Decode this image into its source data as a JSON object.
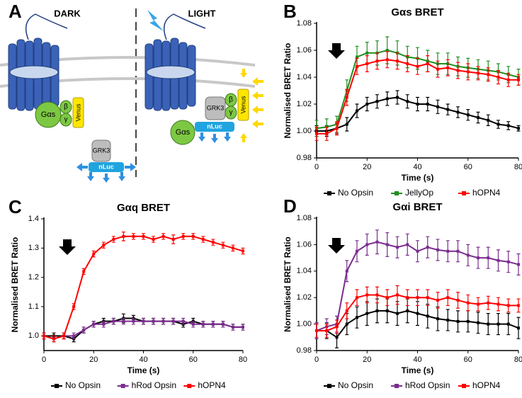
{
  "diagram": {
    "label": "A",
    "left_title": "DARK",
    "right_title": "LIGHT",
    "dark": {
      "g_alpha": "Gαs",
      "beta": "β",
      "gamma": "γ",
      "venus": "Venus",
      "grk": "GRK3",
      "nluc": "nLuc"
    },
    "light": {
      "g_alpha": "Gαs",
      "beta": "β",
      "gamma": "γ",
      "venus": "Venus",
      "grk": "GRK3",
      "nluc": "nLuc"
    }
  },
  "chart_data": [
    {
      "type": "line",
      "panel_label": "B",
      "title": "Gαs BRET",
      "x_label": "Time (s)",
      "y_label": "Normalised BRET Ratio",
      "x": [
        0,
        4,
        8,
        12,
        16,
        20,
        24,
        28,
        32,
        36,
        40,
        44,
        48,
        52,
        56,
        60,
        64,
        68,
        72,
        76,
        80
      ],
      "xlim": [
        0,
        80
      ],
      "xticks": [
        0,
        20,
        40,
        60,
        80
      ],
      "ylim": [
        0.98,
        1.08
      ],
      "yticks": [
        0.98,
        {
          "value": 1,
          "label": "1.00"
        },
        1.02,
        1.04,
        1.06,
        1.08
      ],
      "series": [
        {
          "name": "No Opsin",
          "color": "#000000",
          "values": [
            1.0,
            1.0,
            1.002,
            1.005,
            1.015,
            1.02,
            1.022,
            1.024,
            1.025,
            1.022,
            1.02,
            1.02,
            1.018,
            1.016,
            1.014,
            1.012,
            1.01,
            1.008,
            1.005,
            1.004,
            1.002
          ],
          "errors": [
            0.004,
            0.004,
            0.004,
            0.005,
            0.005,
            0.005,
            0.005,
            0.005,
            0.005,
            0.005,
            0.005,
            0.005,
            0.005,
            0.004,
            0.004,
            0.004,
            0.004,
            0.004,
            0.003,
            0.003,
            0.002
          ]
        },
        {
          "name": "JellyOp",
          "color": "#1f8f1f",
          "values": [
            1.002,
            1.003,
            1.005,
            1.03,
            1.055,
            1.058,
            1.058,
            1.06,
            1.058,
            1.055,
            1.054,
            1.052,
            1.05,
            1.05,
            1.048,
            1.047,
            1.046,
            1.045,
            1.044,
            1.042,
            1.04
          ],
          "errors": [
            0.006,
            0.006,
            0.006,
            0.008,
            0.008,
            0.008,
            0.009,
            0.01,
            0.009,
            0.008,
            0.008,
            0.008,
            0.008,
            0.008,
            0.007,
            0.007,
            0.007,
            0.007,
            0.006,
            0.006,
            0.006
          ]
        },
        {
          "name": "hOPN4",
          "color": "#ff0000",
          "values": [
            0.998,
            0.998,
            1.002,
            1.025,
            1.048,
            1.05,
            1.052,
            1.053,
            1.052,
            1.05,
            1.048,
            1.05,
            1.046,
            1.047,
            1.045,
            1.044,
            1.043,
            1.042,
            1.04,
            1.038,
            1.038
          ],
          "errors": [
            0.005,
            0.005,
            0.005,
            0.006,
            0.006,
            0.006,
            0.006,
            0.006,
            0.006,
            0.006,
            0.006,
            0.006,
            0.006,
            0.006,
            0.006,
            0.006,
            0.005,
            0.005,
            0.005,
            0.005,
            0.004
          ]
        }
      ]
    },
    {
      "type": "line",
      "panel_label": "C",
      "title": "Gαq BRET",
      "x_label": "Time (s)",
      "y_label": "Normalised BRET Ratio",
      "x": [
        0,
        4,
        8,
        12,
        16,
        20,
        24,
        28,
        32,
        36,
        40,
        44,
        48,
        52,
        56,
        60,
        64,
        68,
        72,
        76,
        80
      ],
      "xlim": [
        0,
        80
      ],
      "xticks": [
        0,
        20,
        40,
        60,
        80
      ],
      "ylim": [
        0.95,
        1.4
      ],
      "yticks": [
        {
          "value": 1,
          "label": "1.0"
        },
        1.1,
        1.2,
        1.3,
        1.4
      ],
      "series": [
        {
          "name": "No Opsin",
          "color": "#000000",
          "values": [
            1.0,
            1.0,
            1.0,
            0.99,
            1.02,
            1.04,
            1.05,
            1.05,
            1.06,
            1.06,
            1.05,
            1.05,
            1.05,
            1.05,
            1.04,
            1.05,
            1.04,
            1.04,
            1.04,
            1.03,
            1.03
          ],
          "errors": [
            0.01,
            0.01,
            0.01,
            0.01,
            0.01,
            0.01,
            0.01,
            0.01,
            0.015,
            0.01,
            0.01,
            0.01,
            0.01,
            0.01,
            0.01,
            0.01,
            0.01,
            0.01,
            0.01,
            0.01,
            0.01
          ]
        },
        {
          "name": "hRod Opsin",
          "color": "#7b2c8f",
          "values": [
            1.0,
            0.99,
            1.0,
            1.0,
            1.02,
            1.04,
            1.04,
            1.05,
            1.05,
            1.05,
            1.05,
            1.05,
            1.05,
            1.05,
            1.05,
            1.04,
            1.04,
            1.04,
            1.04,
            1.03,
            1.03
          ],
          "errors": [
            0.01,
            0.01,
            0.01,
            0.01,
            0.01,
            0.01,
            0.01,
            0.01,
            0.01,
            0.01,
            0.01,
            0.01,
            0.01,
            0.01,
            0.01,
            0.01,
            0.01,
            0.01,
            0.01,
            0.01,
            0.01
          ]
        },
        {
          "name": "hOPN4",
          "color": "#ff0000",
          "values": [
            1.0,
            0.99,
            1.0,
            1.1,
            1.22,
            1.28,
            1.31,
            1.33,
            1.34,
            1.34,
            1.34,
            1.33,
            1.34,
            1.33,
            1.34,
            1.34,
            1.33,
            1.32,
            1.31,
            1.3,
            1.29
          ],
          "errors": [
            0.01,
            0.01,
            0.01,
            0.01,
            0.01,
            0.01,
            0.01,
            0.01,
            0.015,
            0.01,
            0.01,
            0.01,
            0.01,
            0.015,
            0.01,
            0.01,
            0.01,
            0.01,
            0.01,
            0.01,
            0.01
          ]
        }
      ]
    },
    {
      "type": "line",
      "panel_label": "D",
      "title": "Gαi BRET",
      "x_label": "Time (s)",
      "y_label": "Normalised BRET Ratio",
      "x": [
        0,
        4,
        8,
        12,
        16,
        20,
        24,
        28,
        32,
        36,
        40,
        44,
        48,
        52,
        56,
        60,
        64,
        68,
        72,
        76,
        80
      ],
      "xlim": [
        0,
        80
      ],
      "xticks": [
        0,
        20,
        40,
        60,
        80
      ],
      "ylim": [
        0.98,
        1.08
      ],
      "yticks": [
        0.98,
        {
          "value": 1,
          "label": "1.00"
        },
        1.02,
        1.04,
        1.06,
        1.08
      ],
      "series": [
        {
          "name": "No Opsin",
          "color": "#000000",
          "values": [
            0.995,
            0.995,
            0.99,
            1.0,
            1.005,
            1.008,
            1.01,
            1.01,
            1.008,
            1.01,
            1.008,
            1.006,
            1.004,
            1.003,
            1.002,
            1.002,
            1.001,
            1.0,
            1.0,
            1.0,
            0.997
          ],
          "errors": [
            0.006,
            0.006,
            0.008,
            0.008,
            0.008,
            0.009,
            0.009,
            0.009,
            0.009,
            0.009,
            0.009,
            0.009,
            0.009,
            0.008,
            0.008,
            0.008,
            0.008,
            0.008,
            0.008,
            0.008,
            0.008
          ]
        },
        {
          "name": "hRod Opsin",
          "color": "#7b2c8f",
          "values": [
            0.995,
            0.998,
            1.0,
            1.04,
            1.055,
            1.06,
            1.062,
            1.06,
            1.058,
            1.06,
            1.055,
            1.058,
            1.056,
            1.055,
            1.055,
            1.052,
            1.05,
            1.05,
            1.048,
            1.047,
            1.045
          ],
          "errors": [
            0.006,
            0.006,
            0.006,
            0.008,
            0.008,
            0.008,
            0.009,
            0.009,
            0.008,
            0.008,
            0.008,
            0.008,
            0.008,
            0.008,
            0.008,
            0.008,
            0.008,
            0.008,
            0.008,
            0.008,
            0.008
          ]
        },
        {
          "name": "hOPN4",
          "color": "#ff0000",
          "values": [
            0.995,
            0.995,
            0.998,
            1.01,
            1.02,
            1.022,
            1.022,
            1.02,
            1.022,
            1.02,
            1.02,
            1.02,
            1.018,
            1.02,
            1.018,
            1.016,
            1.015,
            1.016,
            1.015,
            1.014,
            1.014
          ],
          "errors": [
            0.005,
            0.005,
            0.005,
            0.006,
            0.006,
            0.006,
            0.006,
            0.006,
            0.007,
            0.006,
            0.006,
            0.006,
            0.006,
            0.006,
            0.006,
            0.006,
            0.005,
            0.005,
            0.005,
            0.005,
            0.005
          ]
        }
      ]
    }
  ]
}
